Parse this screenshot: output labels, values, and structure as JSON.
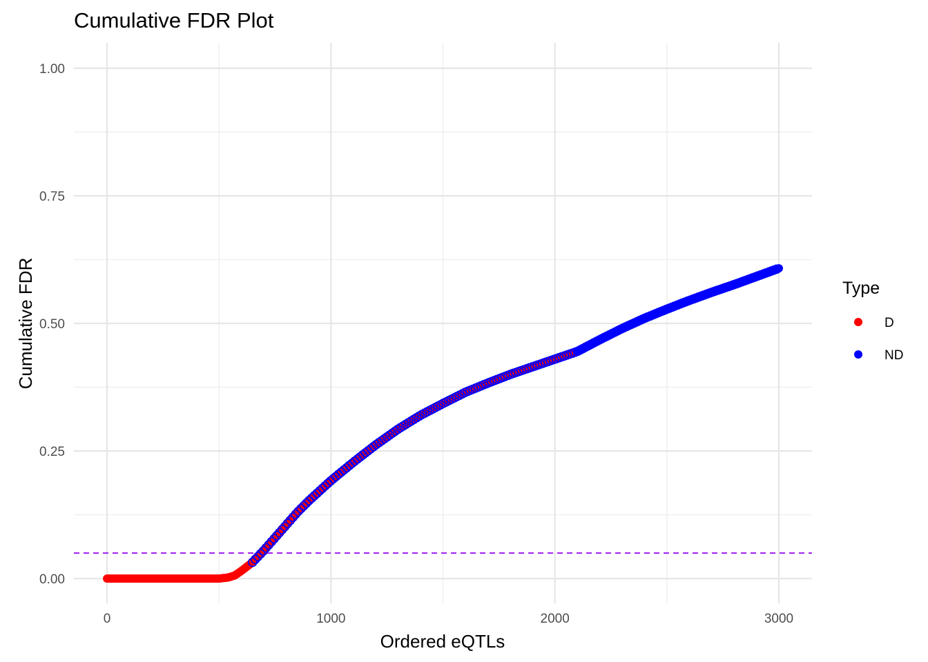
{
  "chart_data": {
    "type": "scatter",
    "title": "Cumulative FDR Plot",
    "xlabel": "Ordered eQTLs",
    "ylabel": "Cumulative FDR",
    "xlim": [
      -150,
      3150
    ],
    "ylim": [
      -0.1,
      1.05
    ],
    "x_ticks": [
      0,
      1000,
      2000,
      3000
    ],
    "x_tick_labels": [
      "0",
      "1000",
      "2000",
      "3000"
    ],
    "y_ticks": [
      0,
      0.25,
      0.5,
      0.75,
      1.0
    ],
    "y_tick_labels": [
      "0.00",
      "0.25",
      "0.50",
      "0.75",
      "1.00"
    ],
    "grid": true,
    "legend": {
      "title": "Type",
      "position": "right",
      "entries": [
        {
          "label": "D",
          "color": "#ff0000"
        },
        {
          "label": "ND",
          "color": "#0000ff"
        }
      ]
    },
    "threshold_line": {
      "y": 0.05,
      "color": "#a020f0",
      "style": "dashed"
    },
    "series": [
      {
        "name": "D",
        "color": "#ff0000",
        "x_range": [
          0,
          2100
        ],
        "curve_x": [
          0,
          100,
          200,
          300,
          400,
          500,
          540,
          570,
          600,
          650,
          700,
          750,
          800,
          850,
          900,
          1000,
          1100,
          1200,
          1300,
          1400,
          1500,
          1600,
          1700,
          1800,
          1900,
          2000,
          2100
        ],
        "curve_y": [
          0,
          0,
          0,
          0,
          0,
          0,
          0.002,
          0.006,
          0.015,
          0.032,
          0.055,
          0.08,
          0.105,
          0.13,
          0.152,
          0.192,
          0.228,
          0.262,
          0.293,
          0.32,
          0.343,
          0.365,
          0.383,
          0.4,
          0.415,
          0.43,
          0.445
        ]
      },
      {
        "name": "ND",
        "color": "#0000ff",
        "x_range": [
          650,
          3000
        ],
        "curve_x": [
          650,
          700,
          750,
          800,
          850,
          900,
          1000,
          1100,
          1200,
          1300,
          1400,
          1500,
          1600,
          1700,
          1800,
          1900,
          2000,
          2100,
          2200,
          2300,
          2400,
          2500,
          2600,
          2700,
          2800,
          2900,
          3000
        ],
        "curve_y": [
          0.032,
          0.055,
          0.08,
          0.105,
          0.13,
          0.152,
          0.192,
          0.228,
          0.262,
          0.293,
          0.32,
          0.343,
          0.365,
          0.383,
          0.4,
          0.415,
          0.43,
          0.445,
          0.468,
          0.49,
          0.51,
          0.528,
          0.545,
          0.561,
          0.576,
          0.592,
          0.608
        ]
      }
    ]
  }
}
